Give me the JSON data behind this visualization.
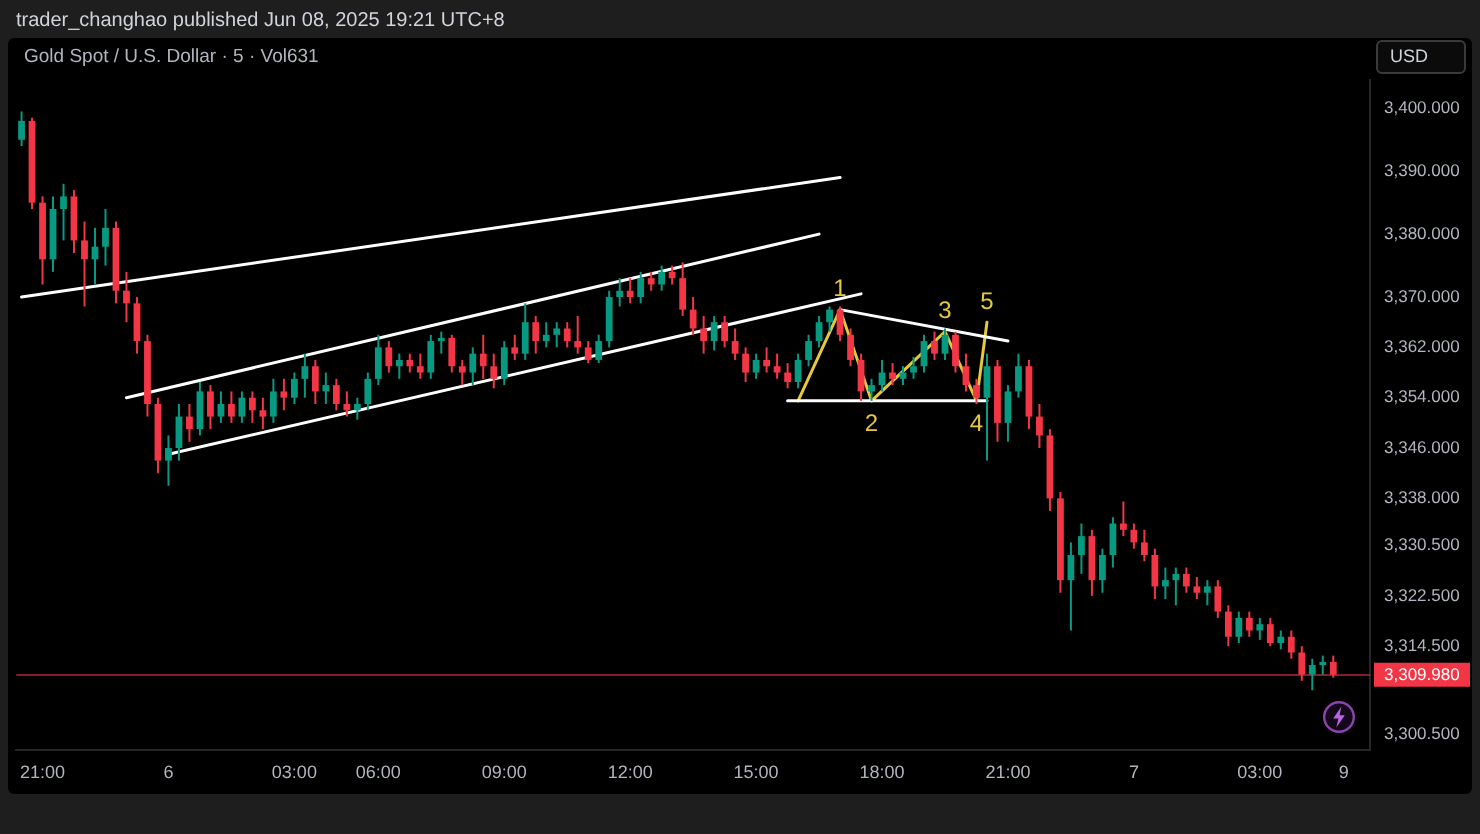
{
  "chart_data": {
    "type": "candlestick",
    "title": "Gold Spot / U.S. Dollar · 5 · Vol631",
    "annotations": [
      "trader_changhao published Jun 08, 2025 19:21 UTC+8",
      {
        "text": "1",
        "y": 3368
      },
      {
        "text": "2",
        "y": 3353.5
      },
      {
        "text": "3",
        "y": 3364.5
      },
      {
        "text": "4",
        "y": 3353.5
      },
      {
        "text": "5",
        "y": 3366
      }
    ],
    "ylabel": "USD",
    "categories": [
      null,
      null,
      "21:00",
      null,
      null,
      null,
      null,
      null,
      null,
      null,
      null,
      null,
      null,
      null,
      "6",
      null,
      null,
      null,
      null,
      null,
      null,
      null,
      null,
      null,
      null,
      null,
      "03:00",
      null,
      null,
      null,
      null,
      null,
      null,
      null,
      "06:00",
      null,
      null,
      null,
      null,
      null,
      null,
      null,
      null,
      null,
      null,
      null,
      "09:00",
      null,
      null,
      null,
      null,
      null,
      null,
      null,
      null,
      null,
      null,
      null,
      "12:00",
      null,
      null,
      null,
      null,
      null,
      null,
      null,
      null,
      null,
      null,
      null,
      "15:00",
      null,
      null,
      null,
      null,
      null,
      null,
      null,
      null,
      null,
      null,
      null,
      "18:00",
      null,
      null,
      null,
      null,
      null,
      null,
      null,
      null,
      null,
      null,
      null,
      "21:00",
      null,
      null,
      null,
      null,
      null,
      null,
      null,
      null,
      null,
      null,
      null,
      "7",
      null,
      null,
      null,
      null,
      null,
      null,
      null,
      null,
      null,
      null,
      null,
      "03:00",
      null,
      null,
      null,
      null,
      null,
      null,
      null,
      "9"
    ],
    "ohlc": [
      [
        3395,
        3399.5,
        3394,
        3398
      ],
      [
        3398,
        3398.5,
        3384,
        3385
      ],
      [
        3385,
        3386,
        3372,
        3376
      ],
      [
        3376,
        3386,
        3374,
        3384
      ],
      [
        3384,
        3388,
        3379,
        3386
      ],
      [
        3386,
        3387,
        3377,
        3379
      ],
      [
        3379,
        3382,
        3368.5,
        3376
      ],
      [
        3376,
        3381,
        3372,
        3378
      ],
      [
        3378,
        3384,
        3375,
        3381
      ],
      [
        3381,
        3382,
        3369,
        3371
      ],
      [
        3371,
        3374,
        3366,
        3369
      ],
      [
        3369,
        3370,
        3361,
        3363
      ],
      [
        3363,
        3364,
        3351,
        3353
      ],
      [
        3353,
        3354,
        3342,
        3344
      ],
      [
        3344,
        3348,
        3340,
        3346
      ],
      [
        3346,
        3353,
        3344,
        3351
      ],
      [
        3351,
        3353,
        3347,
        3349
      ],
      [
        3349,
        3356.5,
        3348,
        3355
      ],
      [
        3355,
        3356,
        3349,
        3351
      ],
      [
        3351,
        3355,
        3350,
        3353
      ],
      [
        3353,
        3355,
        3350,
        3351
      ],
      [
        3351,
        3355,
        3350,
        3354
      ],
      [
        3354,
        3355,
        3350,
        3352
      ],
      [
        3352,
        3354,
        3349,
        3351
      ],
      [
        3351,
        3357,
        3350,
        3355
      ],
      [
        3355,
        3357,
        3352,
        3354
      ],
      [
        3354,
        3358,
        3353,
        3357
      ],
      [
        3357,
        3361,
        3354,
        3359
      ],
      [
        3359,
        3360,
        3353,
        3355
      ],
      [
        3355,
        3358,
        3353,
        3356
      ],
      [
        3356,
        3357,
        3352,
        3353
      ],
      [
        3353,
        3355,
        3351,
        3352
      ],
      [
        3352,
        3354,
        3350.5,
        3353
      ],
      [
        3353,
        3358,
        3352,
        3357
      ],
      [
        3357,
        3364,
        3356,
        3362
      ],
      [
        3362,
        3363,
        3358,
        3359
      ],
      [
        3359,
        3361,
        3357,
        3360
      ],
      [
        3360,
        3361,
        3358,
        3359
      ],
      [
        3359,
        3361,
        3357,
        3358
      ],
      [
        3358,
        3364,
        3357,
        3363
      ],
      [
        3363,
        3364.5,
        3361,
        3363.5
      ],
      [
        3363.5,
        3364,
        3358,
        3359
      ],
      [
        3359,
        3360,
        3356,
        3358
      ],
      [
        3358,
        3362,
        3356,
        3361
      ],
      [
        3361,
        3364,
        3357,
        3359
      ],
      [
        3359,
        3361,
        3355.5,
        3357
      ],
      [
        3357,
        3363,
        3356,
        3362
      ],
      [
        3362,
        3364,
        3360,
        3361
      ],
      [
        3361,
        3369,
        3360,
        3366
      ],
      [
        3366,
        3367,
        3361,
        3363
      ],
      [
        3363,
        3366,
        3362,
        3364
      ],
      [
        3364,
        3366,
        3362,
        3365
      ],
      [
        3365,
        3366,
        3362,
        3363
      ],
      [
        3363,
        3367,
        3361,
        3362
      ],
      [
        3362,
        3363,
        3359.5,
        3360
      ],
      [
        3360,
        3364,
        3359.5,
        3363
      ],
      [
        3363,
        3371,
        3362,
        3370
      ],
      [
        3370,
        3373,
        3368.5,
        3371
      ],
      [
        3371,
        3373,
        3369,
        3370
      ],
      [
        3370,
        3374,
        3369,
        3373
      ],
      [
        3373,
        3374,
        3371,
        3372
      ],
      [
        3372,
        3375,
        3371,
        3374
      ],
      [
        3374,
        3375,
        3372,
        3373
      ],
      [
        3373,
        3375.5,
        3367,
        3368
      ],
      [
        3368,
        3370,
        3364,
        3365
      ],
      [
        3365,
        3367,
        3361,
        3363
      ],
      [
        3363,
        3367,
        3361.5,
        3366
      ],
      [
        3366,
        3367,
        3362,
        3363
      ],
      [
        3363,
        3365,
        3360,
        3361
      ],
      [
        3361,
        3362,
        3356.5,
        3358
      ],
      [
        3358,
        3361,
        3357,
        3360
      ],
      [
        3360,
        3362,
        3358,
        3359
      ],
      [
        3359,
        3361,
        3357,
        3358
      ],
      [
        3358,
        3359.5,
        3355.5,
        3356.5
      ],
      [
        3356.5,
        3361,
        3355.5,
        3360
      ],
      [
        3360,
        3364,
        3359,
        3363
      ],
      [
        3363,
        3367,
        3362,
        3366
      ],
      [
        3366,
        3368.5,
        3364.5,
        3368
      ],
      [
        3368,
        3368.5,
        3363,
        3364
      ],
      [
        3364,
        3365,
        3359,
        3360
      ],
      [
        3360,
        3361,
        3353.5,
        3355
      ],
      [
        3355,
        3357,
        3353.5,
        3356
      ],
      [
        3356,
        3360,
        3355,
        3358
      ],
      [
        3358,
        3359.5,
        3356,
        3357
      ],
      [
        3357,
        3359,
        3356,
        3358
      ],
      [
        3358,
        3360.5,
        3357,
        3359
      ],
      [
        3359,
        3364,
        3358,
        3363
      ],
      [
        3363,
        3364.5,
        3360,
        3361
      ],
      [
        3361,
        3365,
        3360,
        3364
      ],
      [
        3364,
        3364.5,
        3358,
        3359
      ],
      [
        3359,
        3361,
        3355,
        3356
      ],
      [
        3356,
        3357,
        3353,
        3354
      ],
      [
        3354,
        3361,
        3344,
        3359
      ],
      [
        3359,
        3360,
        3347,
        3350
      ],
      [
        3350,
        3356,
        3347,
        3355
      ],
      [
        3355,
        3361,
        3354,
        3359
      ],
      [
        3359,
        3360,
        3349,
        3351
      ],
      [
        3351,
        3353,
        3346,
        3348
      ],
      [
        3348,
        3349,
        3336,
        3338
      ],
      [
        3338,
        3339,
        3323,
        3325
      ],
      [
        3325,
        3331,
        3317,
        3329
      ],
      [
        3329,
        3334,
        3326,
        3332
      ],
      [
        3332,
        3333,
        3322.5,
        3325
      ],
      [
        3325,
        3330,
        3323,
        3329
      ],
      [
        3329,
        3335,
        3327,
        3334
      ],
      [
        3334,
        3337.5,
        3332,
        3333
      ],
      [
        3333,
        3334,
        3330,
        3331
      ],
      [
        3331,
        3333,
        3328,
        3329
      ],
      [
        3329,
        3330,
        3322,
        3324
      ],
      [
        3324,
        3327,
        3322,
        3325
      ],
      [
        3325,
        3327,
        3321,
        3326
      ],
      [
        3326,
        3327,
        3323,
        3324
      ],
      [
        3324,
        3325.5,
        3322,
        3323
      ],
      [
        3323,
        3325,
        3321,
        3324
      ],
      [
        3324,
        3325,
        3319,
        3320
      ],
      [
        3320,
        3321,
        3314.5,
        3316
      ],
      [
        3316,
        3320,
        3315,
        3319
      ],
      [
        3319,
        3320,
        3316,
        3317
      ],
      [
        3317,
        3319,
        3315.5,
        3318
      ],
      [
        3318,
        3319,
        3314.5,
        3315
      ],
      [
        3315,
        3317,
        3314,
        3316
      ],
      [
        3316,
        3317,
        3312.5,
        3313.5
      ],
      [
        3313.5,
        3314.5,
        3309,
        3310
      ],
      [
        3310,
        3312.5,
        3307.5,
        3311.5
      ],
      [
        3311.5,
        3313,
        3310,
        3312
      ],
      [
        3312,
        3313,
        3309.5,
        3309.98
      ],
      null
    ],
    "colors": [
      "#089981",
      "#f23645",
      "#f23645",
      "#089981",
      "#089981",
      "#f23645",
      "#f23645",
      "#089981",
      "#089981",
      "#f23645",
      "#f23645",
      "#f23645",
      "#f23645",
      "#f23645",
      "#089981",
      "#089981",
      "#f23645",
      "#089981",
      "#f23645",
      "#089981",
      "#f23645",
      "#089981",
      "#f23645",
      "#f23645",
      "#089981",
      "#f23645",
      "#089981",
      "#089981",
      "#f23645",
      "#089981",
      "#f23645",
      "#f23645",
      "#089981",
      "#089981",
      "#089981",
      "#f23645",
      "#089981",
      "#f23645",
      "#f23645",
      "#089981",
      "#089981",
      "#f23645",
      "#f23645",
      "#089981",
      "#f23645",
      "#f23645",
      "#089981",
      "#f23645",
      "#089981",
      "#f23645",
      "#089981",
      "#089981",
      "#f23645",
      "#f23645",
      "#f23645",
      "#089981",
      "#089981",
      "#089981",
      "#f23645",
      "#089981",
      "#f23645",
      "#089981",
      "#f23645",
      "#f23645",
      "#f23645",
      "#f23645",
      "#089981",
      "#f23645",
      "#f23645",
      "#f23645",
      "#089981",
      "#f23645",
      "#f23645",
      "#f23645",
      "#089981",
      "#089981",
      "#089981",
      "#089981",
      "#f23645",
      "#f23645",
      "#f23645",
      "#089981",
      "#089981",
      "#f23645",
      "#089981",
      "#089981",
      "#089981",
      "#f23645",
      "#089981",
      "#f23645",
      "#f23645",
      "#f23645",
      "#089981",
      "#f23645",
      "#089981",
      "#089981",
      "#f23645",
      "#f23645",
      "#f23645",
      "#f23645",
      "#089981",
      "#089981",
      "#f23645",
      "#089981",
      "#089981",
      "#f23645",
      "#f23645",
      "#f23645",
      "#f23645",
      "#089981",
      "#089981",
      "#f23645",
      "#f23645",
      "#089981",
      "#f23645",
      "#f23645",
      "#089981",
      "#f23645",
      "#089981",
      "#f23645",
      "#089981",
      "#f23645",
      "#f23645",
      "#089981",
      "#089981",
      "#f23645",
      null
    ],
    "ylim": [
      3298,
      3404.5
    ],
    "yticks": [
      {
        "value": 3400,
        "label": "3,400.000"
      },
      {
        "value": 3390,
        "label": "3,390.000"
      },
      {
        "value": 3380,
        "label": "3,380.000"
      },
      {
        "value": 3370,
        "label": "3,370.000"
      },
      {
        "value": 3362,
        "label": "3,362.000"
      },
      {
        "value": 3354,
        "label": "3,354.000"
      },
      {
        "value": 3346,
        "label": "3,346.000"
      },
      {
        "value": 3338,
        "label": "3,338.000"
      },
      {
        "value": 3330.5,
        "label": "3,330.500"
      },
      {
        "value": 3322.5,
        "label": "3,322.500"
      },
      {
        "value": 3314.5,
        "label": "3,314.500"
      },
      {
        "value": 3300.5,
        "label": "3,300.500"
      }
    ],
    "ref_lines": [
      {
        "axis": "y",
        "value": 3309.98,
        "label": "3,309.980",
        "color": "#f23645"
      }
    ],
    "series": [
      {
        "type": "line",
        "color": "#ffffff",
        "values": [
          3370,
          null,
          null,
          null,
          null,
          null,
          null,
          null,
          null,
          null,
          null,
          null,
          null,
          null,
          null,
          null,
          null,
          null,
          null,
          null,
          null,
          null,
          null,
          null,
          null,
          null,
          null,
          null,
          null,
          null,
          null,
          null,
          null,
          null,
          null,
          null,
          null,
          null,
          null,
          null,
          null,
          null,
          null,
          null,
          null,
          null,
          null,
          null,
          null,
          null,
          null,
          null,
          null,
          null,
          null,
          null,
          null,
          null,
          null,
          null,
          null,
          null,
          null,
          null,
          null,
          null,
          null,
          null,
          null,
          null,
          null,
          null,
          null,
          null,
          null,
          null,
          null,
          null,
          3389,
          null,
          null,
          null,
          null,
          null,
          null,
          null,
          null,
          null,
          null,
          null,
          null,
          null,
          null,
          null,
          null,
          null,
          null,
          null,
          null,
          null,
          null,
          null,
          null,
          null,
          null,
          null,
          null,
          null,
          null,
          null,
          null,
          null,
          null,
          null,
          null,
          null,
          null,
          null,
          null,
          null,
          null,
          null,
          null,
          null,
          null,
          null,
          null
        ]
      },
      {
        "type": "line",
        "color": "#ffffff",
        "values": [
          null,
          null,
          null,
          null,
          null,
          null,
          null,
          null,
          null,
          null,
          3354,
          null,
          null,
          null,
          null,
          null,
          null,
          null,
          null,
          null,
          null,
          null,
          null,
          null,
          null,
          null,
          null,
          null,
          null,
          null,
          null,
          null,
          null,
          null,
          null,
          null,
          null,
          null,
          null,
          null,
          null,
          null,
          null,
          null,
          null,
          null,
          null,
          null,
          null,
          null,
          null,
          null,
          null,
          null,
          null,
          null,
          null,
          null,
          null,
          null,
          null,
          null,
          null,
          null,
          null,
          null,
          null,
          null,
          null,
          null,
          null,
          null,
          null,
          null,
          null,
          null,
          3380,
          null,
          null,
          null,
          null,
          null,
          null,
          null,
          null,
          null,
          null,
          null,
          null,
          null,
          null,
          null,
          null,
          null,
          null,
          null,
          null,
          null,
          null,
          null,
          null,
          null,
          null,
          null,
          null,
          null,
          null,
          null,
          null,
          null,
          null,
          null,
          null,
          null,
          null,
          null,
          null,
          null,
          null,
          null,
          null,
          null,
          null,
          null,
          null,
          null,
          null
        ]
      },
      {
        "type": "line",
        "color": "#ffffff",
        "values": [
          null,
          null,
          null,
          null,
          null,
          null,
          null,
          null,
          null,
          null,
          null,
          null,
          null,
          null,
          3345,
          null,
          null,
          null,
          null,
          null,
          null,
          null,
          null,
          null,
          null,
          null,
          null,
          null,
          null,
          null,
          null,
          null,
          null,
          null,
          null,
          null,
          null,
          null,
          null,
          null,
          null,
          null,
          null,
          null,
          null,
          null,
          null,
          null,
          null,
          null,
          null,
          null,
          null,
          null,
          null,
          null,
          null,
          null,
          null,
          null,
          null,
          null,
          null,
          null,
          null,
          null,
          null,
          null,
          null,
          null,
          null,
          null,
          null,
          null,
          null,
          null,
          null,
          null,
          null,
          null,
          3370.5,
          null,
          null,
          null,
          null,
          null,
          null,
          null,
          null,
          null,
          null,
          null,
          null,
          null,
          null,
          null,
          null,
          null,
          null,
          null,
          null,
          null,
          null,
          null,
          null,
          null,
          null,
          null,
          null,
          null,
          null,
          null,
          null,
          null,
          null,
          null,
          null,
          null,
          null,
          null,
          null,
          null,
          null,
          null,
          null,
          null,
          null
        ]
      },
      {
        "type": "line",
        "color": "#ffffff",
        "values": [
          null,
          null,
          null,
          null,
          null,
          null,
          null,
          null,
          null,
          null,
          null,
          null,
          null,
          null,
          null,
          null,
          null,
          null,
          null,
          null,
          null,
          null,
          null,
          null,
          null,
          null,
          null,
          null,
          null,
          null,
          null,
          null,
          null,
          null,
          null,
          null,
          null,
          null,
          null,
          null,
          null,
          null,
          null,
          null,
          null,
          null,
          null,
          null,
          null,
          null,
          null,
          null,
          null,
          null,
          null,
          null,
          null,
          null,
          null,
          null,
          null,
          null,
          null,
          null,
          null,
          null,
          null,
          null,
          null,
          null,
          null,
          null,
          null,
          null,
          null,
          null,
          null,
          null,
          3368,
          null,
          null,
          null,
          null,
          null,
          null,
          null,
          null,
          null,
          null,
          null,
          null,
          null,
          null,
          null,
          3363,
          null,
          null,
          null,
          null,
          null,
          null,
          null,
          null,
          null,
          null,
          null,
          null,
          null,
          null,
          null,
          null,
          null,
          null,
          null,
          null,
          null,
          null,
          null,
          null,
          null,
          null,
          null,
          null,
          null,
          null,
          null,
          null
        ]
      },
      {
        "type": "line",
        "color": "#ffffff",
        "values": [
          null,
          null,
          null,
          null,
          null,
          null,
          null,
          null,
          null,
          null,
          null,
          null,
          null,
          null,
          null,
          null,
          null,
          null,
          null,
          null,
          null,
          null,
          null,
          null,
          null,
          null,
          null,
          null,
          null,
          null,
          null,
          null,
          null,
          null,
          null,
          null,
          null,
          null,
          null,
          null,
          null,
          null,
          null,
          null,
          null,
          null,
          null,
          null,
          null,
          null,
          null,
          null,
          null,
          null,
          null,
          null,
          null,
          null,
          null,
          null,
          null,
          null,
          null,
          null,
          null,
          null,
          null,
          null,
          null,
          null,
          null,
          null,
          null,
          3353.5,
          null,
          null,
          null,
          null,
          null,
          null,
          null,
          null,
          null,
          null,
          null,
          null,
          null,
          null,
          null,
          null,
          null,
          null,
          3353.5,
          null,
          null,
          null,
          null,
          null,
          null,
          null,
          null,
          null,
          null,
          null,
          null,
          null,
          null,
          null,
          null,
          null,
          null,
          null,
          null,
          null,
          null,
          null,
          null,
          null,
          null,
          null,
          null,
          null,
          null,
          null,
          null,
          null,
          null
        ]
      },
      {
        "type": "line",
        "color": "#e6c83c",
        "values": [
          null,
          null,
          null,
          null,
          null,
          null,
          null,
          null,
          null,
          null,
          null,
          null,
          null,
          null,
          null,
          null,
          null,
          null,
          null,
          null,
          null,
          null,
          null,
          null,
          null,
          null,
          null,
          null,
          null,
          null,
          null,
          null,
          null,
          null,
          null,
          null,
          null,
          null,
          null,
          null,
          null,
          null,
          null,
          null,
          null,
          null,
          null,
          null,
          null,
          null,
          null,
          null,
          null,
          null,
          null,
          null,
          null,
          null,
          null,
          null,
          null,
          null,
          null,
          null,
          null,
          null,
          null,
          null,
          null,
          null,
          null,
          null,
          null,
          null,
          3353.5,
          null,
          null,
          null,
          3368,
          null,
          null,
          3353.5,
          null,
          null,
          null,
          null,
          null,
          null,
          3364.5,
          null,
          null,
          3353.5,
          3366,
          null,
          null,
          null,
          null,
          null,
          null,
          null,
          null,
          null,
          null,
          null,
          null,
          null,
          null,
          null,
          null,
          null,
          null,
          null,
          null,
          null,
          null,
          null,
          null,
          null,
          null,
          null,
          null,
          null,
          null,
          null,
          null,
          null,
          null
        ]
      }
    ]
  }
}
